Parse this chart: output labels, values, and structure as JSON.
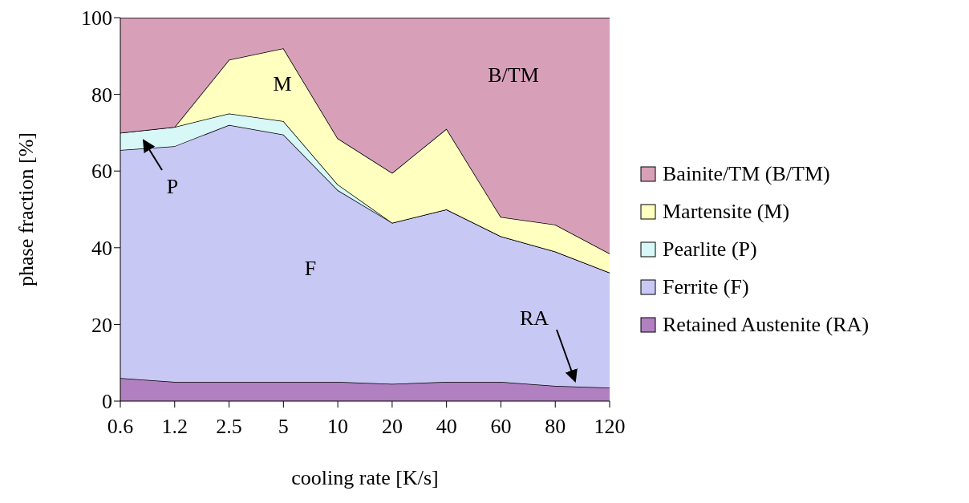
{
  "chart_data": {
    "type": "area",
    "stacked": true,
    "xlabel": "cooling rate [K/s]",
    "ylabel": "phase fraction [%]",
    "categories": [
      "0.6",
      "1.2",
      "2.5",
      "5",
      "10",
      "20",
      "40",
      "60",
      "80",
      "120"
    ],
    "series": [
      {
        "name": "Retained Austenite (RA)",
        "color": "#b080c0",
        "values": [
          6,
          5,
          5,
          5,
          5,
          4.5,
          5,
          5,
          4,
          3.5
        ]
      },
      {
        "name": "Ferrite (F)",
        "color": "#c8c8f4",
        "values": [
          59.5,
          61.5,
          67,
          64.5,
          50,
          42,
          45,
          38,
          35,
          30
        ]
      },
      {
        "name": "Pearlite (P)",
        "color": "#d8f8f8",
        "values": [
          4.5,
          5,
          3,
          3.5,
          1.5,
          0,
          0,
          0,
          0,
          0
        ]
      },
      {
        "name": "Martensite (M)",
        "color": "#ffffc0",
        "values": [
          0,
          0,
          14,
          19,
          12,
          13,
          21,
          5,
          7,
          5
        ]
      },
      {
        "name": "Bainite/TM (B/TM)",
        "color": "#d8a0b8",
        "values": [
          30,
          28.5,
          11,
          8,
          31.5,
          40.5,
          29,
          52,
          54,
          61.5
        ]
      }
    ],
    "ylim": [
      0,
      100
    ],
    "yticks": [
      0,
      20,
      40,
      60,
      80,
      100
    ],
    "grid": false,
    "legend": "right",
    "annotations": [
      "M",
      "B/TM",
      "P",
      "F",
      "RA"
    ]
  }
}
